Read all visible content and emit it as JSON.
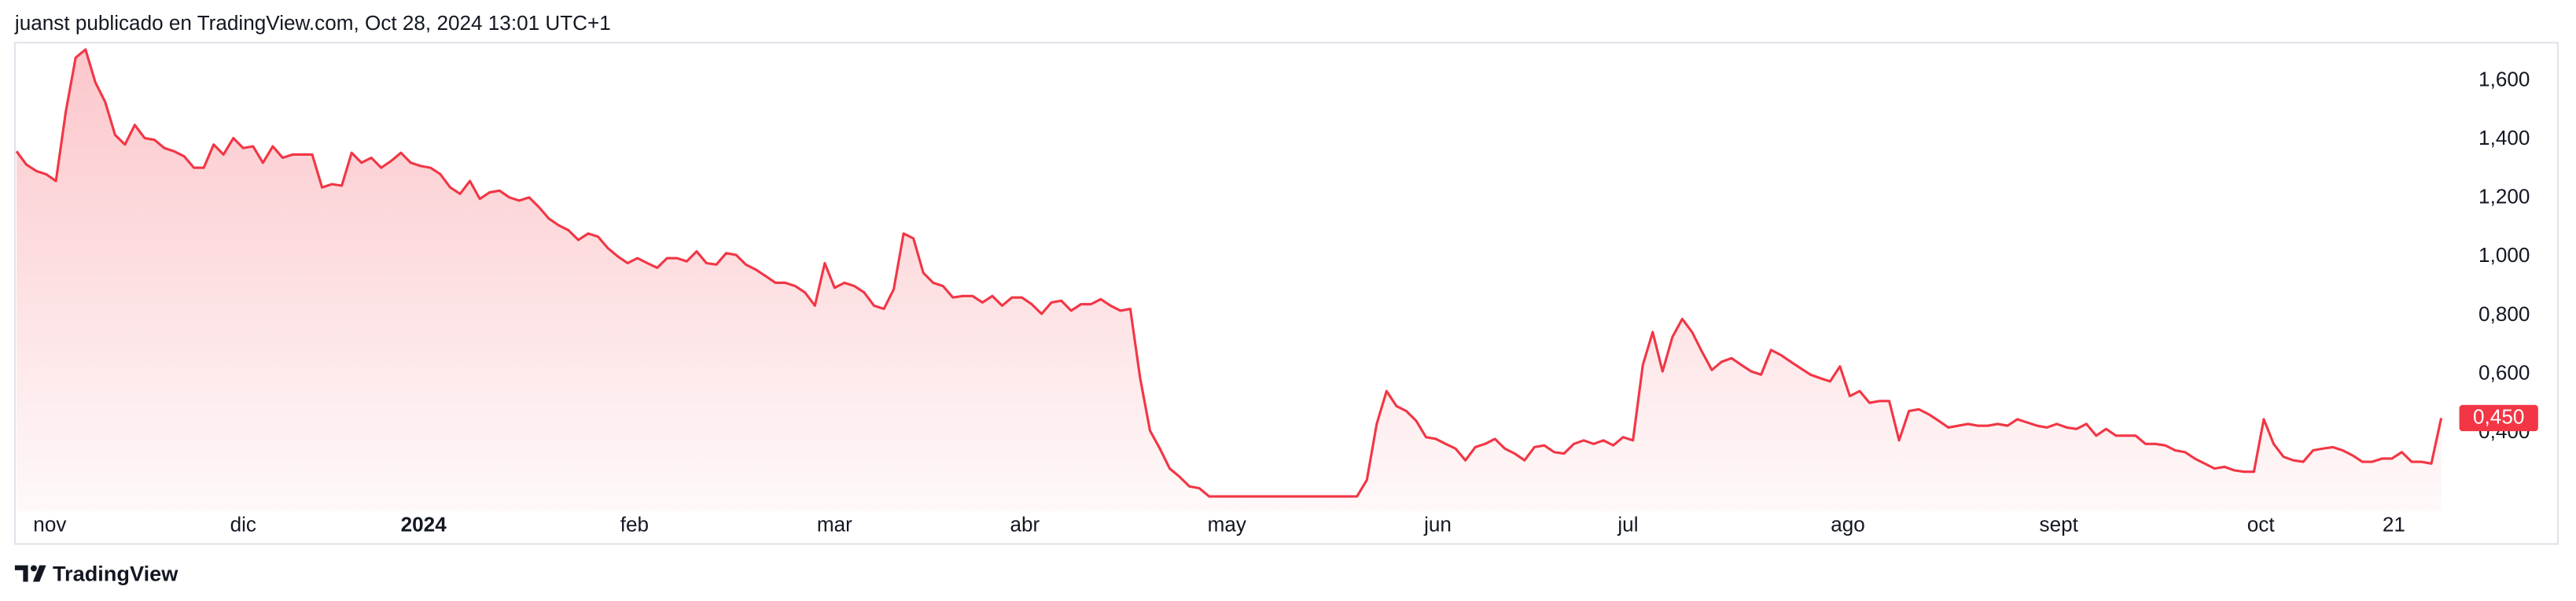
{
  "header": "juanst publicado en TradingView.com, Oct 28, 2024 13:01 UTC+1",
  "footer": "TradingView",
  "chart_data": {
    "type": "area",
    "color": "#f23645",
    "grid": false,
    "values": [
      1.359,
      1.314,
      1.292,
      1.281,
      1.258,
      1.494,
      1.678,
      1.706,
      1.594,
      1.527,
      1.415,
      1.382,
      1.449,
      1.404,
      1.398,
      1.37,
      1.359,
      1.342,
      1.303,
      1.303,
      1.382,
      1.348,
      1.404,
      1.37,
      1.376,
      1.32,
      1.376,
      1.337,
      1.348,
      1.348,
      1.348,
      1.236,
      1.247,
      1.242,
      1.354,
      1.32,
      1.337,
      1.303,
      1.326,
      1.354,
      1.32,
      1.309,
      1.303,
      1.281,
      1.236,
      1.214,
      1.258,
      1.197,
      1.219,
      1.225,
      1.202,
      1.191,
      1.202,
      1.169,
      1.13,
      1.107,
      1.09,
      1.057,
      1.079,
      1.068,
      1.029,
      1.001,
      0.978,
      0.995,
      0.978,
      0.962,
      0.995,
      0.995,
      0.984,
      1.018,
      0.978,
      0.973,
      1.012,
      1.006,
      0.973,
      0.956,
      0.934,
      0.911,
      0.911,
      0.9,
      0.878,
      0.833,
      0.978,
      0.894,
      0.911,
      0.9,
      0.878,
      0.833,
      0.822,
      0.889,
      1.079,
      1.062,
      0.945,
      0.911,
      0.9,
      0.861,
      0.866,
      0.866,
      0.844,
      0.866,
      0.833,
      0.861,
      0.861,
      0.838,
      0.805,
      0.844,
      0.85,
      0.816,
      0.838,
      0.838,
      0.855,
      0.833,
      0.816,
      0.822,
      0.586,
      0.407,
      0.346,
      0.278,
      0.25,
      0.217,
      0.211,
      0.183,
      0.183,
      0.183,
      0.183,
      0.183,
      0.183,
      0.183,
      0.183,
      0.183,
      0.183,
      0.183,
      0.183,
      0.183,
      0.183,
      0.183,
      0.183,
      0.239,
      0.43,
      0.542,
      0.491,
      0.474,
      0.441,
      0.385,
      0.379,
      0.362,
      0.346,
      0.306,
      0.351,
      0.362,
      0.379,
      0.346,
      0.329,
      0.306,
      0.351,
      0.357,
      0.334,
      0.329,
      0.362,
      0.374,
      0.362,
      0.374,
      0.357,
      0.385,
      0.374,
      0.631,
      0.743,
      0.609,
      0.726,
      0.788,
      0.743,
      0.676,
      0.614,
      0.642,
      0.654,
      0.631,
      0.609,
      0.598,
      0.682,
      0.665,
      0.642,
      0.62,
      0.598,
      0.586,
      0.575,
      0.626,
      0.525,
      0.542,
      0.502,
      0.508,
      0.508,
      0.374,
      0.474,
      0.48,
      0.463,
      0.441,
      0.418,
      0.424,
      0.43,
      0.424,
      0.424,
      0.43,
      0.424,
      0.446,
      0.435,
      0.424,
      0.418,
      0.43,
      0.418,
      0.413,
      0.43,
      0.39,
      0.413,
      0.39,
      0.39,
      0.39,
      0.362,
      0.362,
      0.357,
      0.34,
      0.334,
      0.312,
      0.295,
      0.278,
      0.284,
      0.272,
      0.267,
      0.267,
      0.446,
      0.362,
      0.318,
      0.306,
      0.301,
      0.34,
      0.346,
      0.351,
      0.34,
      0.323,
      0.301,
      0.301,
      0.312,
      0.312,
      0.334,
      0.301,
      0.301,
      0.295,
      0.45
    ],
    "xlim": [
      0,
      247.5
    ],
    "xticks": [
      {
        "value": 1.7,
        "label": "nov"
      },
      {
        "value": 23,
        "label": "dic"
      },
      {
        "value": 41.3,
        "label": "2024"
      },
      {
        "value": 62.7,
        "label": "feb"
      },
      {
        "value": 83,
        "label": "mar"
      },
      {
        "value": 102.3,
        "label": "abr"
      },
      {
        "value": 122.8,
        "label": "may"
      },
      {
        "value": 144.2,
        "label": "jun"
      },
      {
        "value": 163.5,
        "label": "jul"
      },
      {
        "value": 185.8,
        "label": "ago"
      },
      {
        "value": 207.2,
        "label": "sept"
      },
      {
        "value": 227.7,
        "label": "oct"
      },
      {
        "value": 241.2,
        "label": "21"
      }
    ],
    "ylim": [
      0.133,
      1.729
    ],
    "yticks": [
      {
        "value": 1.6,
        "label": "1,600"
      },
      {
        "value": 1.4,
        "label": "1,400"
      },
      {
        "value": 1.2,
        "label": "1,200"
      },
      {
        "value": 1.0,
        "label": "1,000"
      },
      {
        "value": 0.8,
        "label": "0,800"
      },
      {
        "value": 0.6,
        "label": "0,600"
      },
      {
        "value": 0.4,
        "label": "0,400"
      }
    ],
    "price_label": {
      "value": 0.45,
      "label": "0,450"
    }
  }
}
